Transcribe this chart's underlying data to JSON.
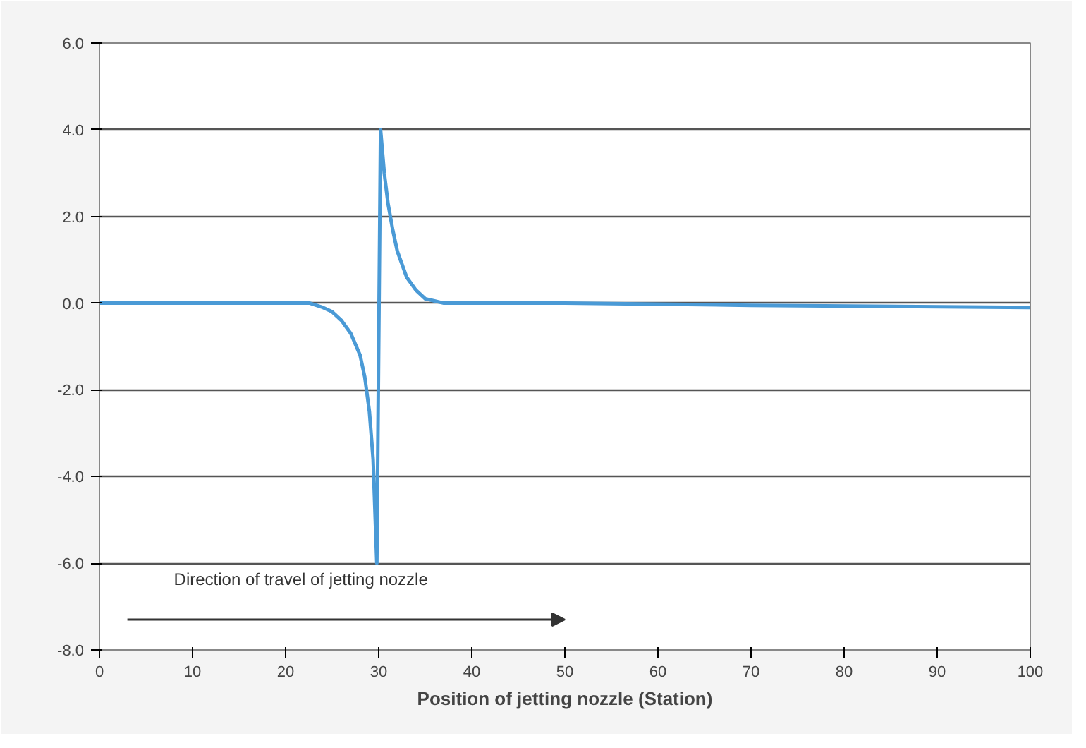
{
  "chart_data": {
    "type": "line",
    "xlabel": "Position of jetting nozzle (Station)",
    "annotations": [
      "Direction of travel of jetting nozzle"
    ],
    "x": [
      0,
      10,
      20,
      22.6,
      24,
      25,
      26,
      27,
      28,
      28.5,
      29,
      29.4,
      29.8,
      30.2,
      30.6,
      31,
      31.5,
      32,
      33,
      34,
      35,
      36,
      37,
      50,
      70,
      100
    ],
    "series": [
      {
        "color": "#4a9ad6",
        "values": [
          0,
          0,
          0,
          0,
          -0.1,
          -0.2,
          -0.4,
          -0.7,
          -1.2,
          -1.7,
          -2.5,
          -3.6,
          -6.0,
          4.0,
          3.0,
          2.3,
          1.7,
          1.2,
          0.6,
          0.3,
          0.1,
          0.05,
          0,
          0,
          -0.05,
          -0.1
        ]
      }
    ],
    "xlim": [
      0,
      100
    ],
    "xticks": [
      0,
      10,
      20,
      30,
      40,
      50,
      60,
      70,
      80,
      90,
      100
    ],
    "ylim": [
      -8,
      6
    ],
    "yticks": [
      {
        "value": -8,
        "label": "-8.0"
      },
      {
        "value": -6,
        "label": "-6.0"
      },
      {
        "value": -4,
        "label": "-4.0"
      },
      {
        "value": -2,
        "label": "-2.0"
      },
      {
        "value": 0,
        "label": "0.0"
      },
      {
        "value": 2,
        "label": "2.0"
      },
      {
        "value": 4,
        "label": "4.0"
      },
      {
        "value": 6,
        "label": "6.0"
      }
    ],
    "grid": "y",
    "marker": "none",
    "line_style": "solid"
  }
}
